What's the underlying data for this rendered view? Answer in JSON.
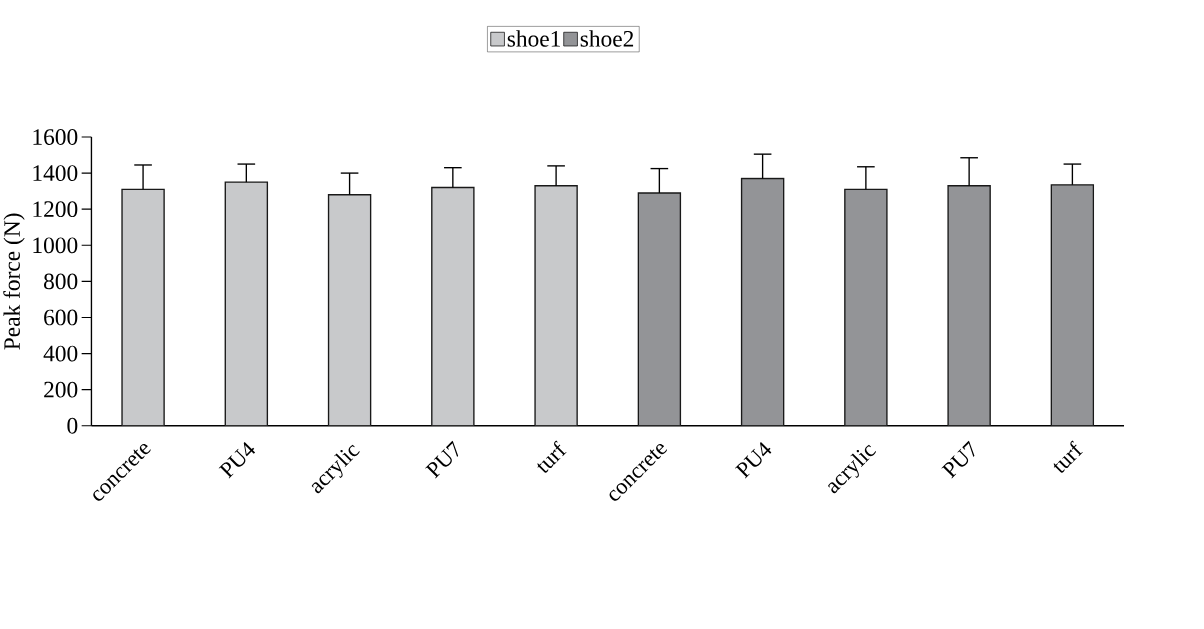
{
  "chart_data": {
    "type": "bar",
    "ylabel": "Peak force (N)",
    "categories": [
      "concrete",
      "PU4",
      "acrylic",
      "PU7",
      "turf",
      "concrete",
      "PU4",
      "acrylic",
      "PU7",
      "turf"
    ],
    "series": [
      {
        "name": "shoe1",
        "color": "#c8c9cb",
        "values": [
          1310,
          1350,
          1280,
          1320,
          1330,
          null,
          null,
          null,
          null,
          null
        ],
        "errors": [
          [
            1310,
            1445
          ],
          [
            1350,
            1450
          ],
          [
            1280,
            1400
          ],
          [
            1320,
            1430
          ],
          [
            1330,
            1440
          ],
          null,
          null,
          null,
          null,
          null
        ]
      },
      {
        "name": "shoe2",
        "color": "#939497",
        "values": [
          null,
          null,
          null,
          null,
          null,
          1290,
          1370,
          1310,
          1330,
          1335
        ],
        "errors": [
          null,
          null,
          null,
          null,
          null,
          [
            1290,
            1425
          ],
          [
            1370,
            1505
          ],
          [
            1310,
            1435
          ],
          [
            1330,
            1485
          ],
          [
            1335,
            1450
          ]
        ]
      }
    ],
    "ylim": [
      0,
      1600
    ],
    "yticks": [
      0,
      200,
      400,
      600,
      800,
      1000,
      1200,
      1400,
      1600
    ],
    "legend": "top",
    "grid": false
  }
}
